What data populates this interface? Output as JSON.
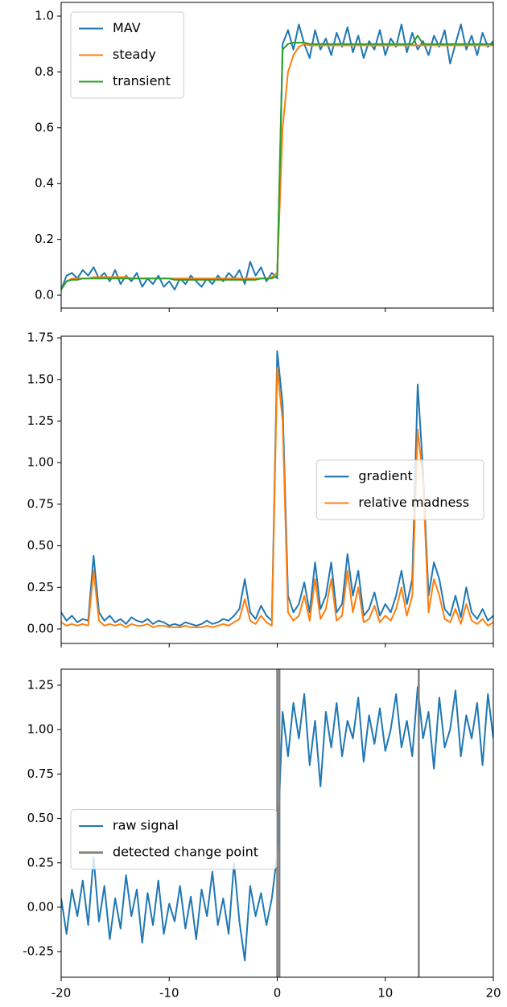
{
  "chart_data": [
    {
      "type": "line",
      "legend": "upper left",
      "x": [
        -20,
        -19.5,
        -19,
        -18.5,
        -18,
        -17.5,
        -17,
        -16.5,
        -16,
        -15.5,
        -15,
        -14.5,
        -14,
        -13.5,
        -13,
        -12.5,
        -12,
        -11.5,
        -11,
        -10.5,
        -10,
        -9.5,
        -9,
        -8.5,
        -8,
        -7.5,
        -7,
        -6.5,
        -6,
        -5.5,
        -5,
        -4.5,
        -4,
        -3.5,
        -3,
        -2.5,
        -2,
        -1.5,
        -1,
        -0.5,
        0,
        0.5,
        1,
        1.5,
        2,
        2.5,
        3,
        3.5,
        4,
        4.5,
        5,
        5.5,
        6,
        6.5,
        7,
        7.5,
        8,
        8.5,
        9,
        9.5,
        10,
        10.5,
        11,
        11.5,
        12,
        12.5,
        13,
        13.5,
        14,
        14.5,
        15,
        15.5,
        16,
        16.5,
        17,
        17.5,
        18,
        18.5,
        19,
        19.5,
        20
      ],
      "series": [
        {
          "name": "MAV",
          "color": "#1f77b4",
          "values": [
            0.02,
            0.07,
            0.08,
            0.06,
            0.09,
            0.07,
            0.1,
            0.06,
            0.08,
            0.05,
            0.09,
            0.04,
            0.07,
            0.05,
            0.08,
            0.03,
            0.06,
            0.04,
            0.07,
            0.03,
            0.05,
            0.02,
            0.06,
            0.04,
            0.07,
            0.05,
            0.03,
            0.06,
            0.04,
            0.07,
            0.05,
            0.08,
            0.06,
            0.09,
            0.04,
            0.12,
            0.07,
            0.1,
            0.05,
            0.08,
            0.06,
            0.9,
            0.95,
            0.88,
            0.97,
            0.9,
            0.85,
            0.95,
            0.88,
            0.92,
            0.86,
            0.94,
            0.89,
            0.96,
            0.87,
            0.93,
            0.85,
            0.91,
            0.88,
            0.95,
            0.86,
            0.92,
            0.89,
            0.97,
            0.87,
            0.94,
            0.88,
            0.91,
            0.86,
            0.93,
            0.89,
            0.95,
            0.83,
            0.9,
            0.97,
            0.88,
            0.93,
            0.86,
            0.94,
            0.89,
            0.91
          ]
        },
        {
          "name": "steady",
          "color": "#ff7f0e",
          "values": [
            0.02,
            0.05,
            0.06,
            0.06,
            0.06,
            0.06,
            0.065,
            0.065,
            0.065,
            0.065,
            0.065,
            0.065,
            0.065,
            0.06,
            0.06,
            0.06,
            0.06,
            0.06,
            0.06,
            0.06,
            0.06,
            0.06,
            0.06,
            0.06,
            0.06,
            0.06,
            0.06,
            0.06,
            0.06,
            0.06,
            0.06,
            0.06,
            0.06,
            0.06,
            0.06,
            0.06,
            0.06,
            0.06,
            0.06,
            0.065,
            0.08,
            0.6,
            0.8,
            0.86,
            0.89,
            0.9,
            0.895,
            0.895,
            0.895,
            0.895,
            0.895,
            0.895,
            0.895,
            0.895,
            0.895,
            0.895,
            0.895,
            0.895,
            0.895,
            0.895,
            0.895,
            0.895,
            0.895,
            0.895,
            0.895,
            0.895,
            0.895,
            0.895,
            0.895,
            0.895,
            0.895,
            0.895,
            0.895,
            0.895,
            0.895,
            0.895,
            0.895,
            0.895,
            0.895,
            0.895,
            0.895
          ]
        },
        {
          "name": "transient",
          "color": "#2ca02c",
          "values": [
            0.02,
            0.05,
            0.055,
            0.055,
            0.06,
            0.06,
            0.06,
            0.06,
            0.06,
            0.06,
            0.06,
            0.06,
            0.06,
            0.06,
            0.06,
            0.06,
            0.06,
            0.06,
            0.06,
            0.06,
            0.06,
            0.055,
            0.055,
            0.055,
            0.055,
            0.055,
            0.055,
            0.055,
            0.055,
            0.055,
            0.055,
            0.055,
            0.055,
            0.055,
            0.055,
            0.055,
            0.055,
            0.06,
            0.06,
            0.06,
            0.07,
            0.88,
            0.9,
            0.905,
            0.905,
            0.905,
            0.9,
            0.9,
            0.9,
            0.9,
            0.9,
            0.9,
            0.9,
            0.9,
            0.9,
            0.9,
            0.9,
            0.9,
            0.9,
            0.9,
            0.9,
            0.9,
            0.9,
            0.9,
            0.9,
            0.9,
            0.93,
            0.9,
            0.9,
            0.9,
            0.9,
            0.9,
            0.9,
            0.9,
            0.9,
            0.9,
            0.9,
            0.9,
            0.9,
            0.9,
            0.9
          ]
        }
      ],
      "xlim": [
        -20,
        20
      ],
      "xticks": [
        -20,
        -10,
        0,
        10,
        20
      ],
      "ylim": [
        -0.046,
        1.049
      ],
      "yticks": [
        {
          "value": 0,
          "label": "0.0"
        },
        0.2,
        0.4,
        0.6,
        0.8,
        {
          "value": 1,
          "label": "1.0"
        }
      ]
    },
    {
      "type": "line",
      "legend": "center right",
      "x": [
        -20,
        -19.5,
        -19,
        -18.5,
        -18,
        -17.5,
        -17,
        -16.5,
        -16,
        -15.5,
        -15,
        -14.5,
        -14,
        -13.5,
        -13,
        -12.5,
        -12,
        -11.5,
        -11,
        -10.5,
        -10,
        -9.5,
        -9,
        -8.5,
        -8,
        -7.5,
        -7,
        -6.5,
        -6,
        -5.5,
        -5,
        -4.5,
        -4,
        -3.5,
        -3,
        -2.5,
        -2,
        -1.5,
        -1,
        -0.5,
        0,
        0.5,
        1,
        1.5,
        2,
        2.5,
        3,
        3.5,
        4,
        4.5,
        5,
        5.5,
        6,
        6.5,
        7,
        7.5,
        8,
        8.5,
        9,
        9.5,
        10,
        10.5,
        11,
        11.5,
        12,
        12.5,
        13,
        13.5,
        14,
        14.5,
        15,
        15.5,
        16,
        16.5,
        17,
        17.5,
        18,
        18.5,
        19,
        19.5,
        20
      ],
      "series": [
        {
          "name": "gradient",
          "color": "#1f77b4",
          "values": [
            0.1,
            0.05,
            0.08,
            0.04,
            0.06,
            0.05,
            0.44,
            0.1,
            0.05,
            0.08,
            0.04,
            0.06,
            0.03,
            0.07,
            0.05,
            0.04,
            0.06,
            0.03,
            0.05,
            0.04,
            0.02,
            0.03,
            0.02,
            0.04,
            0.03,
            0.02,
            0.03,
            0.05,
            0.03,
            0.04,
            0.06,
            0.05,
            0.08,
            0.12,
            0.3,
            0.1,
            0.06,
            0.14,
            0.08,
            0.05,
            1.67,
            1.35,
            0.2,
            0.1,
            0.15,
            0.28,
            0.1,
            0.4,
            0.12,
            0.2,
            0.4,
            0.1,
            0.15,
            0.45,
            0.2,
            0.35,
            0.08,
            0.12,
            0.22,
            0.08,
            0.15,
            0.1,
            0.2,
            0.35,
            0.15,
            0.3,
            1.47,
            0.95,
            0.2,
            0.4,
            0.3,
            0.12,
            0.08,
            0.2,
            0.07,
            0.25,
            0.1,
            0.06,
            0.12,
            0.05,
            0.08
          ]
        },
        {
          "name": "relative madness",
          "color": "#ff7f0e",
          "values": [
            0.04,
            0.02,
            0.03,
            0.02,
            0.03,
            0.02,
            0.35,
            0.05,
            0.02,
            0.03,
            0.02,
            0.03,
            0.01,
            0.03,
            0.02,
            0.02,
            0.03,
            0.01,
            0.02,
            0.02,
            0.01,
            0.01,
            0.01,
            0.02,
            0.01,
            0.01,
            0.01,
            0.02,
            0.01,
            0.02,
            0.03,
            0.02,
            0.04,
            0.06,
            0.18,
            0.05,
            0.03,
            0.08,
            0.04,
            0.02,
            1.57,
            1.25,
            0.1,
            0.05,
            0.08,
            0.2,
            0.05,
            0.3,
            0.06,
            0.12,
            0.3,
            0.05,
            0.08,
            0.35,
            0.1,
            0.25,
            0.04,
            0.06,
            0.14,
            0.04,
            0.08,
            0.05,
            0.12,
            0.25,
            0.08,
            0.2,
            1.2,
            0.9,
            0.1,
            0.3,
            0.2,
            0.06,
            0.04,
            0.12,
            0.03,
            0.15,
            0.05,
            0.03,
            0.06,
            0.02,
            0.04
          ]
        }
      ],
      "xlim": [
        -20,
        20
      ],
      "xticks": [
        -20,
        -10,
        0,
        10,
        20
      ],
      "ylim": [
        -0.087,
        1.76
      ],
      "yticks": [
        {
          "value": 0,
          "label": "0.00"
        },
        0.25,
        {
          "value": 0.5,
          "label": "0.50"
        },
        0.75,
        {
          "value": 1,
          "label": "1.00"
        },
        1.25,
        {
          "value": 1.5,
          "label": "1.50"
        },
        1.75
      ]
    },
    {
      "type": "line",
      "legend": "center left",
      "x": [
        -20,
        -19.5,
        -19,
        -18.5,
        -18,
        -17.5,
        -17,
        -16.5,
        -16,
        -15.5,
        -15,
        -14.5,
        -14,
        -13.5,
        -13,
        -12.5,
        -12,
        -11.5,
        -11,
        -10.5,
        -10,
        -9.5,
        -9,
        -8.5,
        -8,
        -7.5,
        -7,
        -6.5,
        -6,
        -5.5,
        -5,
        -4.5,
        -4,
        -3.5,
        -3,
        -2.5,
        -2,
        -1.5,
        -1,
        -0.5,
        0,
        0.5,
        1,
        1.5,
        2,
        2.5,
        3,
        3.5,
        4,
        4.5,
        5,
        5.5,
        6,
        6.5,
        7,
        7.5,
        8,
        8.5,
        9,
        9.5,
        10,
        10.5,
        11,
        11.5,
        12,
        12.5,
        13,
        13.5,
        14,
        14.5,
        15,
        15.5,
        16,
        16.5,
        17,
        17.5,
        18,
        18.5,
        19,
        19.5,
        20
      ],
      "series": [
        {
          "name": "raw signal",
          "color": "#1f77b4",
          "values": [
            0.05,
            -0.15,
            0.1,
            -0.05,
            0.15,
            -0.1,
            0.28,
            -0.08,
            0.12,
            -0.18,
            0.05,
            -0.12,
            0.18,
            -0.05,
            0.1,
            -0.2,
            0.08,
            -0.1,
            0.15,
            -0.15,
            0.02,
            -0.08,
            0.12,
            -0.12,
            0.06,
            -0.18,
            0.1,
            -0.05,
            0.2,
            -0.1,
            0.05,
            -0.15,
            0.25,
            -0.08,
            -0.3,
            0.12,
            -0.05,
            0.08,
            -0.1,
            0.05,
            0.3,
            1.1,
            0.85,
            1.15,
            0.95,
            1.2,
            0.8,
            1.05,
            0.68,
            1.1,
            0.9,
            1.15,
            0.85,
            1.05,
            0.95,
            1.18,
            0.82,
            1.08,
            0.92,
            1.12,
            0.88,
            1.0,
            1.2,
            0.9,
            1.05,
            0.85,
            1.24,
            0.95,
            1.1,
            0.78,
            1.18,
            0.9,
            1.0,
            1.22,
            0.85,
            1.08,
            0.95,
            1.15,
            0.8,
            1.2,
            0.95
          ]
        },
        {
          "name": "detected change point",
          "color": "#808080",
          "type": "vline",
          "x": [
            0,
            0.2,
            13.1
          ]
        }
      ],
      "xlim": [
        -20,
        20
      ],
      "xticks": [
        -20,
        -10,
        0,
        10,
        20
      ],
      "ylim": [
        -0.394,
        1.34
      ],
      "yticks": [
        -0.25,
        {
          "value": 0,
          "label": "0.00"
        },
        0.25,
        {
          "value": 0.5,
          "label": "0.50"
        },
        0.75,
        {
          "value": 1,
          "label": "1.00"
        },
        1.25
      ]
    }
  ]
}
